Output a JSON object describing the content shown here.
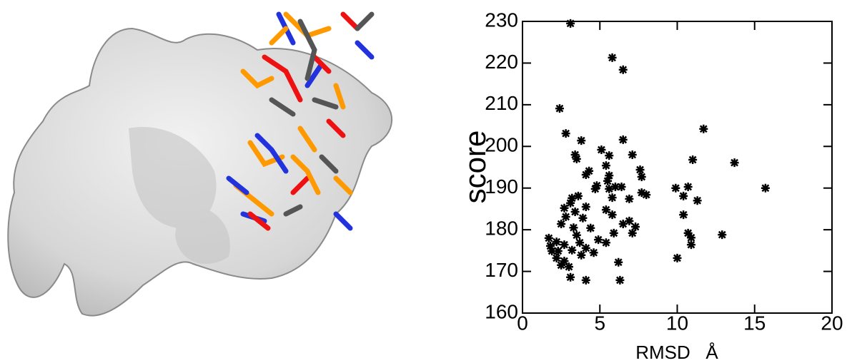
{
  "chart_data": {
    "type": "scatter",
    "xlabel": "RMSD   Å",
    "ylabel": "score",
    "color": "#000000",
    "marker": "asterisk",
    "xlim": [
      0,
      20
    ],
    "xticks": [
      0,
      5,
      10,
      15,
      20
    ],
    "ylim": [
      160,
      230
    ],
    "yticks": [
      160,
      170,
      180,
      190,
      200,
      210,
      220,
      230
    ],
    "x": [
      3.1,
      5.8,
      6.5,
      2.4,
      11.7,
      2.8,
      6.5,
      3.8,
      5.1,
      5.6,
      7.1,
      3.4,
      3.5,
      11.0,
      13.7,
      5.4,
      7.6,
      4.3,
      4.1,
      5.6,
      7.7,
      5.5,
      4.8,
      6.4,
      6.0,
      15.7,
      9.9,
      10.7,
      5.6,
      4.7,
      7.7,
      8.0,
      3.6,
      10.4,
      11.3,
      3.2,
      5.8,
      6.9,
      3.1,
      4.1,
      2.7,
      5.4,
      3.4,
      5.8,
      10.4,
      2.8,
      3.9,
      6.9,
      6.5,
      2.5,
      3.3,
      4.4,
      7.3,
      10.7,
      5.9,
      7.1,
      12.9,
      3.5,
      10.9,
      1.7,
      2.2,
      4.9,
      5.4,
      3.7,
      2.7,
      1.8,
      10.9,
      4.1,
      3.2,
      1.9,
      2.3,
      4.6,
      3.8,
      10.0,
      2.2,
      2.7,
      6.2,
      2.5,
      3.0,
      3.1,
      4.1,
      6.3
    ],
    "values": [
      229.5,
      221.3,
      218.4,
      209.1,
      204.2,
      203.1,
      201.6,
      201.4,
      199.2,
      197.8,
      198.0,
      198.0,
      197.0,
      196.8,
      196.1,
      195.4,
      194.4,
      194.1,
      193.2,
      193.0,
      192.7,
      191.7,
      190.6,
      190.3,
      190.3,
      190.0,
      190.0,
      190.3,
      189.8,
      189.8,
      188.9,
      188.4,
      188.1,
      188.1,
      187.0,
      187.6,
      187.7,
      187.4,
      186.4,
      185.5,
      185.2,
      184.8,
      184.3,
      183.6,
      183.6,
      183.1,
      182.8,
      182.1,
      181.4,
      181.4,
      180.5,
      180.4,
      180.7,
      179.2,
      179.2,
      179.2,
      178.8,
      178.7,
      178.1,
      178.0,
      177.1,
      177.6,
      176.9,
      176.9,
      176.4,
      176.1,
      176.4,
      175.6,
      175.1,
      174.9,
      174.9,
      174.5,
      173.9,
      173.2,
      173.2,
      172.5,
      172.2,
      171.5,
      171.1,
      168.6,
      167.9,
      167.9
    ]
  }
}
